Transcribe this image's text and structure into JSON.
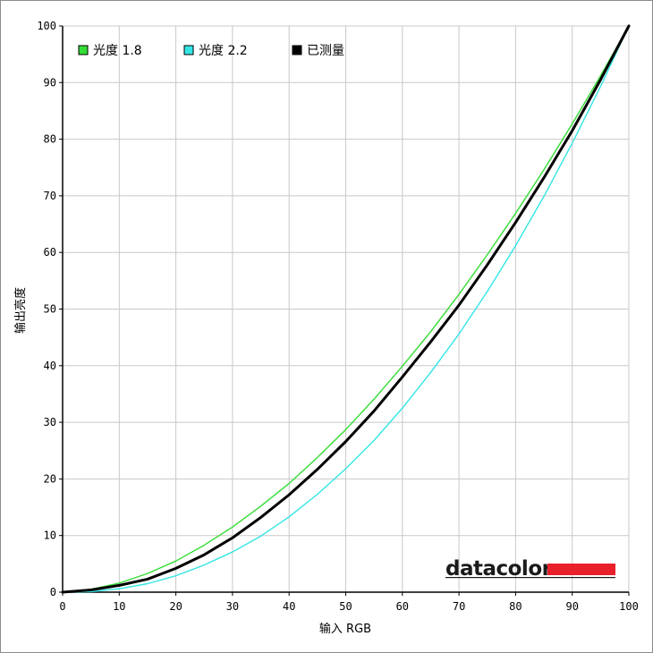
{
  "chart_data": {
    "type": "line",
    "title": "",
    "xlabel": "输入 RGB",
    "ylabel": "输出亮度",
    "xlim": [
      0,
      100
    ],
    "ylim": [
      0,
      100
    ],
    "xticks": [
      0,
      10,
      20,
      30,
      40,
      50,
      60,
      70,
      80,
      90,
      100
    ],
    "yticks": [
      0,
      10,
      20,
      30,
      40,
      50,
      60,
      70,
      80,
      90,
      100
    ],
    "grid": true,
    "legend_position": "top-left",
    "series": [
      {
        "name": "光度 1.8",
        "color": "#33dd33",
        "x": [
          0,
          5,
          10,
          15,
          20,
          25,
          30,
          35,
          40,
          45,
          50,
          55,
          60,
          65,
          70,
          75,
          80,
          85,
          90,
          95,
          100
        ],
        "y": [
          0,
          0.5,
          1.6,
          3.3,
          5.5,
          8.3,
          11.5,
          15.2,
          19.2,
          23.8,
          28.7,
          34.1,
          39.9,
          46.0,
          52.6,
          59.6,
          66.9,
          74.6,
          82.7,
          91.2,
          100
        ]
      },
      {
        "name": "光度 2.2",
        "color": "#33e5e5",
        "x": [
          0,
          5,
          10,
          15,
          20,
          25,
          30,
          35,
          40,
          45,
          50,
          55,
          60,
          65,
          70,
          75,
          80,
          85,
          90,
          95,
          100
        ],
        "y": [
          0,
          0.1,
          0.6,
          1.5,
          2.9,
          4.8,
          7.1,
          9.9,
          13.3,
          17.3,
          21.8,
          26.8,
          32.5,
          38.8,
          45.6,
          53.1,
          61.2,
          69.9,
          79.3,
          89.3,
          100
        ]
      },
      {
        "name": "已测量",
        "color": "#000000",
        "x": [
          0,
          5,
          10,
          15,
          20,
          25,
          30,
          35,
          40,
          45,
          50,
          55,
          60,
          65,
          70,
          75,
          80,
          85,
          90,
          95,
          100
        ],
        "y": [
          0,
          0.4,
          1.2,
          2.3,
          4.2,
          6.6,
          9.6,
          13.2,
          17.2,
          21.7,
          26.6,
          32.0,
          38.0,
          44.2,
          50.7,
          57.8,
          65.3,
          73.2,
          81.5,
          90.5,
          100
        ]
      }
    ]
  },
  "brand": {
    "text": "datacolor",
    "bar_color": "#e8202a"
  }
}
